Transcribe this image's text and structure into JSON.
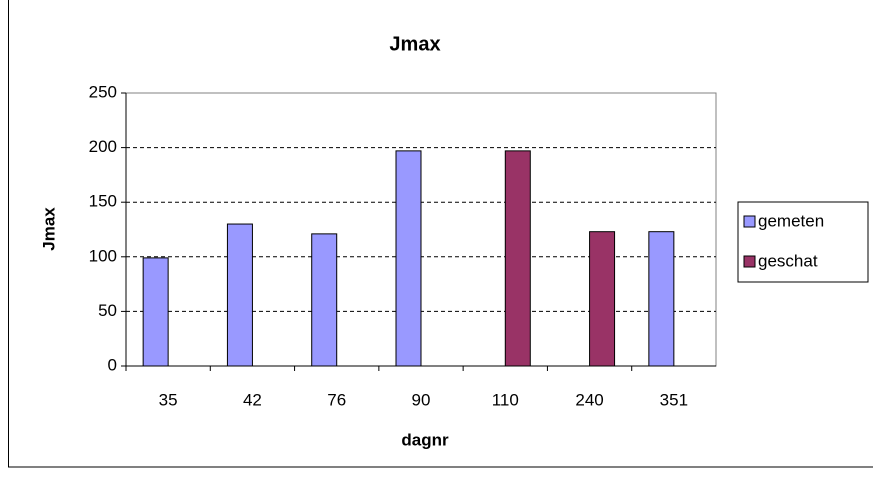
{
  "chart_data": {
    "type": "bar",
    "title": "Jmax",
    "x_label": "dagnr",
    "y_label": "Jmax",
    "categories": [
      "35",
      "42",
      "76",
      "90",
      "110",
      "240",
      "351"
    ],
    "series": [
      {
        "name": "gemeten",
        "color": "#9999ff",
        "values": [
          99,
          130,
          121,
          197,
          null,
          null,
          123
        ]
      },
      {
        "name": "geschat",
        "color": "#993366",
        "values": [
          null,
          null,
          null,
          null,
          197,
          123,
          null
        ]
      }
    ],
    "ylim": [
      0,
      250
    ],
    "yticks": [
      0,
      50,
      100,
      150,
      200,
      250
    ],
    "grid": true,
    "legend": "right"
  }
}
